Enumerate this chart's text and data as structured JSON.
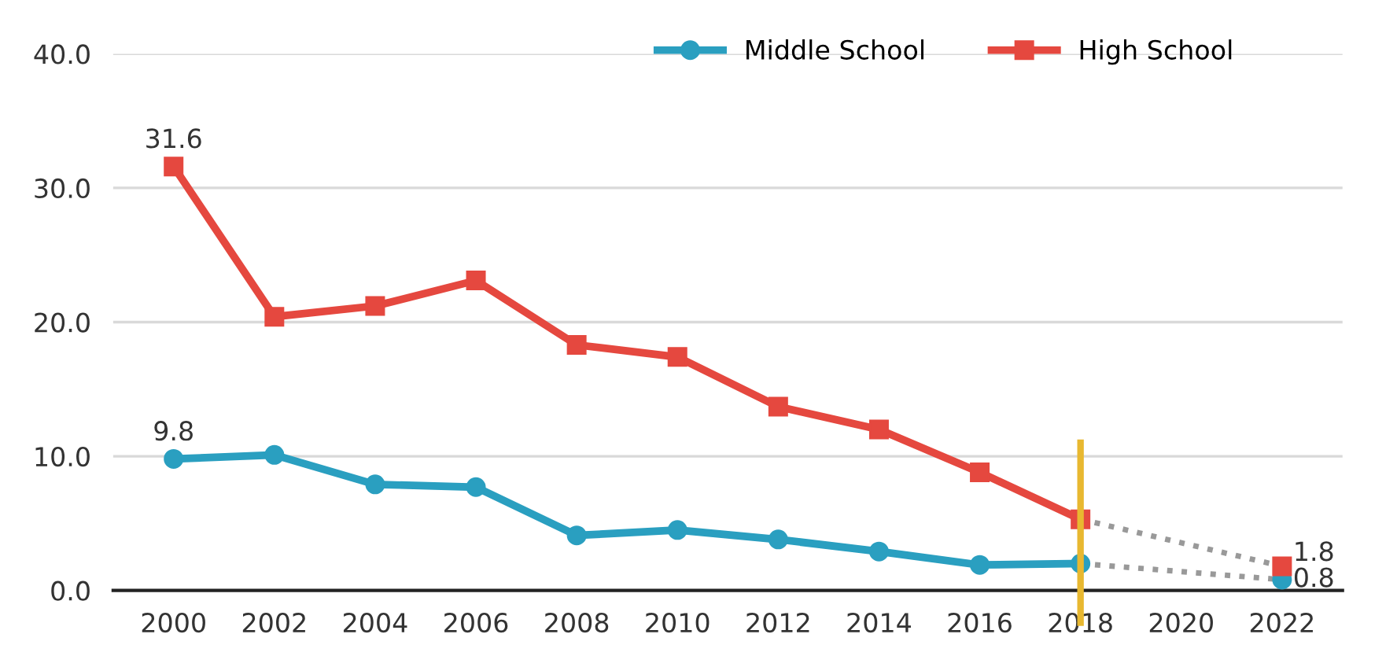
{
  "chart_data": {
    "type": "line",
    "categories": [
      "2000",
      "2002",
      "2004",
      "2006",
      "2008",
      "2010",
      "2012",
      "2014",
      "2016",
      "2018",
      "2020",
      "2022"
    ],
    "series": [
      {
        "name": "Middle School",
        "color": "#2a9fc0",
        "marker": "circle",
        "values": [
          9.8,
          10.1,
          7.9,
          7.7,
          4.1,
          4.5,
          3.8,
          2.9,
          1.9,
          2.0,
          null,
          0.8
        ],
        "value_labels": [
          "9.8",
          null,
          null,
          null,
          null,
          null,
          null,
          null,
          null,
          null,
          null,
          "0.8"
        ]
      },
      {
        "name": "High School",
        "color": "#e5483f",
        "marker": "square",
        "values": [
          31.6,
          20.4,
          21.2,
          23.1,
          18.3,
          17.4,
          13.7,
          12.0,
          8.8,
          5.3,
          null,
          1.8
        ],
        "value_labels": [
          "31.6",
          null,
          null,
          null,
          null,
          null,
          null,
          null,
          null,
          null,
          null,
          "1.8"
        ]
      },
      {
        "color": "#999999",
        "marker": "none",
        "line_style": "dotted",
        "values": [
          null,
          null,
          null,
          null,
          null,
          null,
          null,
          null,
          null,
          2.0,
          null,
          0.8
        ]
      },
      {
        "color": "#999999",
        "marker": "none",
        "line_style": "dotted",
        "values": [
          null,
          null,
          null,
          null,
          null,
          null,
          null,
          null,
          null,
          5.3,
          null,
          1.8
        ]
      }
    ],
    "ylim": [
      0,
      40
    ],
    "yticks": [
      {
        "value": 0,
        "label": "0.0"
      },
      {
        "value": 10,
        "label": "10.0"
      },
      {
        "value": 20,
        "label": "20.0"
      },
      {
        "value": 30,
        "label": "30.0"
      },
      {
        "value": 40,
        "label": "40.0"
      }
    ],
    "grid": "y",
    "legend": "top right",
    "ref_lines": [
      {
        "axis": "x",
        "value": "2018",
        "color": "#e8b830"
      }
    ]
  }
}
